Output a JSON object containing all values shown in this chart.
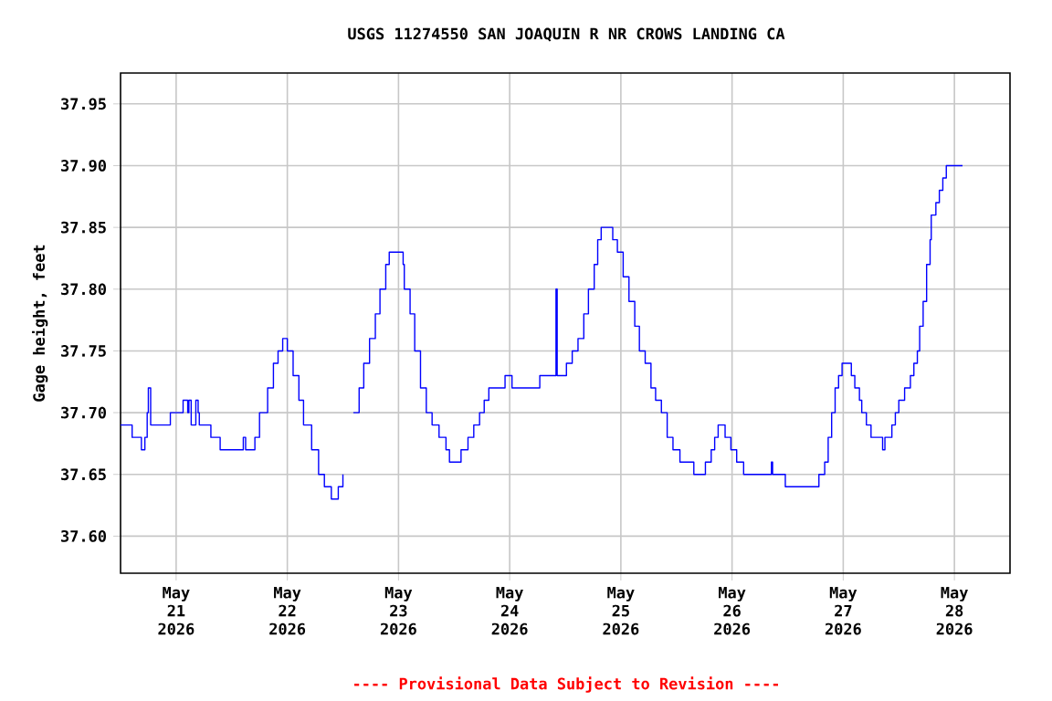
{
  "chart_data": {
    "type": "step",
    "title": "USGS 11274550 SAN JOAQUIN R NR CROWS LANDING CA",
    "ylabel": "Gage height, feet",
    "annotations": [
      "---- Provisional Data Subject to Revision ----"
    ],
    "color": "#0000ff",
    "grid": true,
    "xlim": [
      "2026-05-20T12:00",
      "2026-05-28T12:00"
    ],
    "xticks": [
      {
        "value": "2026-05-21",
        "label": "May 21 2026"
      },
      {
        "value": "2026-05-22",
        "label": "May 22 2026"
      },
      {
        "value": "2026-05-23",
        "label": "May 23 2026"
      },
      {
        "value": "2026-05-24",
        "label": "May 24 2026"
      },
      {
        "value": "2026-05-25",
        "label": "May 25 2026"
      },
      {
        "value": "2026-05-26",
        "label": "May 26 2026"
      },
      {
        "value": "2026-05-27",
        "label": "May 27 2026"
      },
      {
        "value": "2026-05-28",
        "label": "May 28 2026"
      }
    ],
    "ylim": [
      37.57,
      37.975
    ],
    "yticks": [
      {
        "value": 37.6,
        "label": "37.60"
      },
      {
        "value": 37.65,
        "label": "37.65"
      },
      {
        "value": 37.7,
        "label": "37.70"
      },
      {
        "value": 37.75,
        "label": "37.75"
      },
      {
        "value": 37.8,
        "label": "37.80"
      },
      {
        "value": 37.85,
        "label": "37.85"
      },
      {
        "value": 37.9,
        "label": "37.90"
      },
      {
        "value": 37.95,
        "label": "37.95"
      }
    ],
    "x": [
      "2026-05-20T12:00",
      "2026-05-20T14:30",
      "2026-05-20T16:30",
      "2026-05-20T17:15",
      "2026-05-20T17:45",
      "2026-05-20T18:00",
      "2026-05-20T18:30",
      "2026-05-20T22:45",
      "2026-05-21T01:30",
      "2026-05-21T02:30",
      "2026-05-21T02:45",
      "2026-05-21T03:15",
      "2026-05-21T04:15",
      "2026-05-21T04:45",
      "2026-05-21T05:00",
      "2026-05-21T07:30",
      "2026-05-21T09:30",
      "2026-05-21T14:30",
      "2026-05-21T15:00",
      "2026-05-21T17:00",
      "2026-05-21T18:00",
      "2026-05-21T19:45",
      "2026-05-21T21:00",
      "2026-05-21T22:00",
      "2026-05-21T23:00",
      "2026-05-22T00:00",
      "2026-05-22T01:15",
      "2026-05-22T02:30",
      "2026-05-22T03:30",
      "2026-05-22T05:15",
      "2026-05-22T06:45",
      "2026-05-22T08:00",
      "2026-05-22T09:30",
      "2026-05-22T11:00",
      "2026-05-22T12:00",
      "2026-05-22T13:15",
      "2026-05-22T14:15",
      "2026-05-22T15:30",
      "2026-05-22T16:30",
      "2026-05-22T17:45",
      "2026-05-22T19:00",
      "2026-05-22T20:00",
      "2026-05-22T21:15",
      "2026-05-22T22:00",
      "2026-05-23T00:00",
      "2026-05-23T01:00",
      "2026-05-23T01:15",
      "2026-05-23T02:30",
      "2026-05-23T03:30",
      "2026-05-23T04:45",
      "2026-05-23T06:00",
      "2026-05-23T07:15",
      "2026-05-23T08:45",
      "2026-05-23T10:15",
      "2026-05-23T11:00",
      "2026-05-23T13:30",
      "2026-05-23T15:00",
      "2026-05-23T16:15",
      "2026-05-23T17:30",
      "2026-05-23T18:30",
      "2026-05-23T19:30",
      "2026-05-23T23:00",
      "2026-05-24T00:30",
      "2026-05-24T06:30",
      "2026-05-24T10:00",
      "2026-05-24T10:15",
      "2026-05-24T12:15",
      "2026-05-24T13:30",
      "2026-05-24T14:45",
      "2026-05-24T16:00",
      "2026-05-24T17:00",
      "2026-05-24T18:15",
      "2026-05-24T19:00",
      "2026-05-24T19:45",
      "2026-05-24T22:15",
      "2026-05-24T23:15",
      "2026-05-25T00:30",
      "2026-05-25T01:45",
      "2026-05-25T03:00",
      "2026-05-25T04:00",
      "2026-05-25T05:15",
      "2026-05-25T06:30",
      "2026-05-25T07:30",
      "2026-05-25T08:45",
      "2026-05-25T10:00",
      "2026-05-25T11:15",
      "2026-05-25T12:45",
      "2026-05-25T15:45",
      "2026-05-25T18:15",
      "2026-05-25T19:30",
      "2026-05-25T20:15",
      "2026-05-25T21:00",
      "2026-05-25T22:30",
      "2026-05-25T23:45",
      "2026-05-26T01:00",
      "2026-05-26T02:30",
      "2026-05-26T08:30",
      "2026-05-26T08:45",
      "2026-05-26T11:30",
      "2026-05-26T18:45",
      "2026-05-26T20:00",
      "2026-05-26T20:45",
      "2026-05-26T21:30",
      "2026-05-26T22:15",
      "2026-05-26T23:00",
      "2026-05-26T23:45",
      "2026-05-27T01:45",
      "2026-05-27T02:30",
      "2026-05-27T03:30",
      "2026-05-27T04:00",
      "2026-05-27T05:00",
      "2026-05-27T06:00",
      "2026-05-27T08:30",
      "2026-05-27T09:00",
      "2026-05-27T10:30",
      "2026-05-27T11:15",
      "2026-05-27T12:00",
      "2026-05-27T13:15",
      "2026-05-27T14:30",
      "2026-05-27T15:15",
      "2026-05-27T16:00",
      "2026-05-27T16:30",
      "2026-05-27T17:15",
      "2026-05-27T18:00",
      "2026-05-27T18:45",
      "2026-05-27T19:00",
      "2026-05-27T20:00",
      "2026-05-27T20:45",
      "2026-05-27T21:30",
      "2026-05-27T22:15",
      "2026-05-28T01:45"
    ],
    "values": [
      37.69,
      37.68,
      37.67,
      37.68,
      37.7,
      37.72,
      37.69,
      37.7,
      37.71,
      37.7,
      37.71,
      37.69,
      37.71,
      37.7,
      37.69,
      37.68,
      37.67,
      37.68,
      37.67,
      37.68,
      37.7,
      37.72,
      37.74,
      37.75,
      37.76,
      37.75,
      37.73,
      37.71,
      37.69,
      37.67,
      37.65,
      37.64,
      37.63,
      37.64,
      37.65,
      null,
      37.7,
      37.72,
      37.74,
      37.76,
      37.78,
      37.8,
      37.82,
      37.83,
      37.83,
      37.82,
      37.8,
      37.78,
      37.75,
      37.72,
      37.7,
      37.69,
      37.68,
      37.67,
      37.66,
      37.67,
      37.68,
      37.69,
      37.7,
      37.71,
      37.72,
      37.73,
      37.72,
      37.73,
      37.8,
      37.73,
      37.74,
      37.75,
      37.76,
      37.78,
      37.8,
      37.82,
      37.84,
      37.85,
      37.84,
      37.83,
      37.81,
      37.79,
      37.77,
      37.75,
      37.74,
      37.72,
      37.71,
      37.7,
      37.68,
      37.67,
      37.66,
      37.65,
      37.66,
      37.67,
      37.68,
      37.69,
      37.68,
      37.67,
      37.66,
      37.65,
      37.66,
      37.65,
      37.64,
      37.65,
      37.66,
      37.68,
      37.7,
      37.72,
      37.73,
      37.74,
      37.73,
      37.72,
      37.71,
      37.7,
      37.69,
      37.68,
      37.67,
      37.68,
      37.69,
      37.7,
      37.71,
      37.72,
      37.73,
      37.74,
      37.75,
      37.77,
      37.79,
      37.82,
      37.84,
      37.86,
      37.87,
      37.88,
      37.89,
      37.9,
      37.9
    ]
  }
}
